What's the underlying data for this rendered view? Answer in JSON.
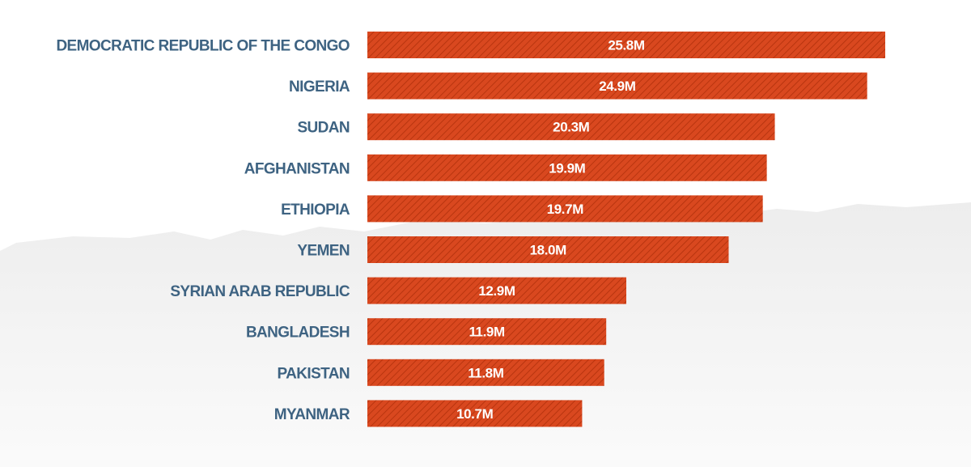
{
  "chart_data": {
    "type": "bar",
    "orientation": "horizontal",
    "title": "",
    "xlabel": "",
    "ylabel": "",
    "xlim": [
      0,
      25.8
    ],
    "grid": false,
    "categories": [
      "DEMOCRATIC REPUBLIC OF THE CONGO",
      "NIGERIA",
      "SUDAN",
      "AFGHANISTAN",
      "ETHIOPIA",
      "YEMEN",
      "SYRIAN ARAB REPUBLIC",
      "BANGLADESH",
      "PAKISTAN",
      "MYANMAR"
    ],
    "values": [
      25.8,
      24.9,
      20.3,
      19.9,
      19.7,
      18.0,
      12.9,
      11.9,
      11.8,
      10.7
    ],
    "value_labels": [
      "25.8M",
      "24.9M",
      "20.3M",
      "19.9M",
      "19.7M",
      "18.0M",
      "12.9M",
      "11.9M",
      "11.8M",
      "10.7M"
    ]
  },
  "colors": {
    "bar": "#d9481f",
    "bar_stripe": "#b8350f",
    "label": "#3e6382",
    "value_text": "#ffffff",
    "background_map": "#ededed"
  }
}
